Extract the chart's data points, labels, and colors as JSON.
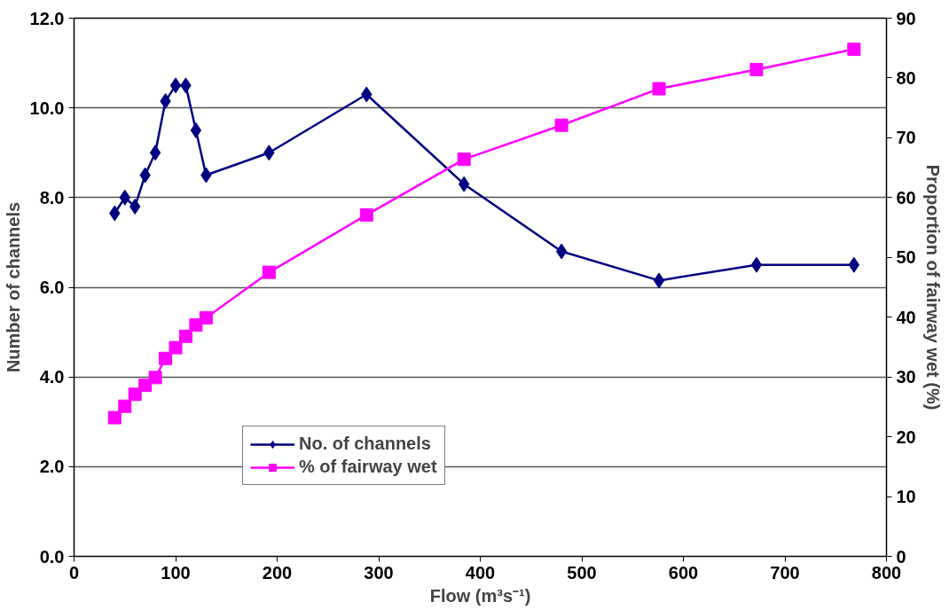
{
  "chart_data": {
    "type": "line",
    "xlabel": "Flow (m³s⁻¹)",
    "ylabel": "Number of channels",
    "y2label": "Proportion of fairway wet (%)",
    "x": [
      40,
      50,
      60,
      70,
      80,
      90,
      100,
      110,
      120,
      130,
      192,
      288,
      384,
      480,
      576,
      672,
      768
    ],
    "series": [
      {
        "name": "No. of channels",
        "color": "#000080",
        "marker": "diamond",
        "values": [
          7.65,
          8.0,
          7.8,
          8.5,
          9.0,
          10.15,
          10.5,
          10.5,
          9.5,
          8.5,
          9.0,
          10.3,
          8.3,
          6.8,
          6.15,
          6.5,
          6.5
        ]
      },
      {
        "name": "% of fairway wet",
        "color": "#ff00ff",
        "marker": "square",
        "axis": "y2",
        "values": [
          23.2,
          25.1,
          27.1,
          28.6,
          29.9,
          33.1,
          34.9,
          36.8,
          38.7,
          39.9,
          47.5,
          57.1,
          66.4,
          72.1,
          78.2,
          81.4,
          84.8
        ]
      }
    ],
    "xlim": [
      0,
      800
    ],
    "xticks": [
      0,
      100,
      200,
      300,
      400,
      500,
      600,
      700,
      800
    ],
    "ylim": [
      0,
      12
    ],
    "yticks": [
      {
        "value": 0,
        "label": "0.0"
      },
      {
        "value": 2,
        "label": "2.0"
      },
      {
        "value": 4,
        "label": "4.0"
      },
      {
        "value": 6,
        "label": "6.0"
      },
      {
        "value": 8,
        "label": "8.0"
      },
      {
        "value": 10,
        "label": "10.0"
      },
      {
        "value": 12,
        "label": "12.0"
      }
    ],
    "y2lim": [
      0,
      90
    ],
    "y2ticks": [
      0,
      10,
      20,
      30,
      40,
      50,
      60,
      70,
      80,
      90
    ],
    "grid": "y",
    "legend": "bottom left",
    "line_style": "solid"
  }
}
